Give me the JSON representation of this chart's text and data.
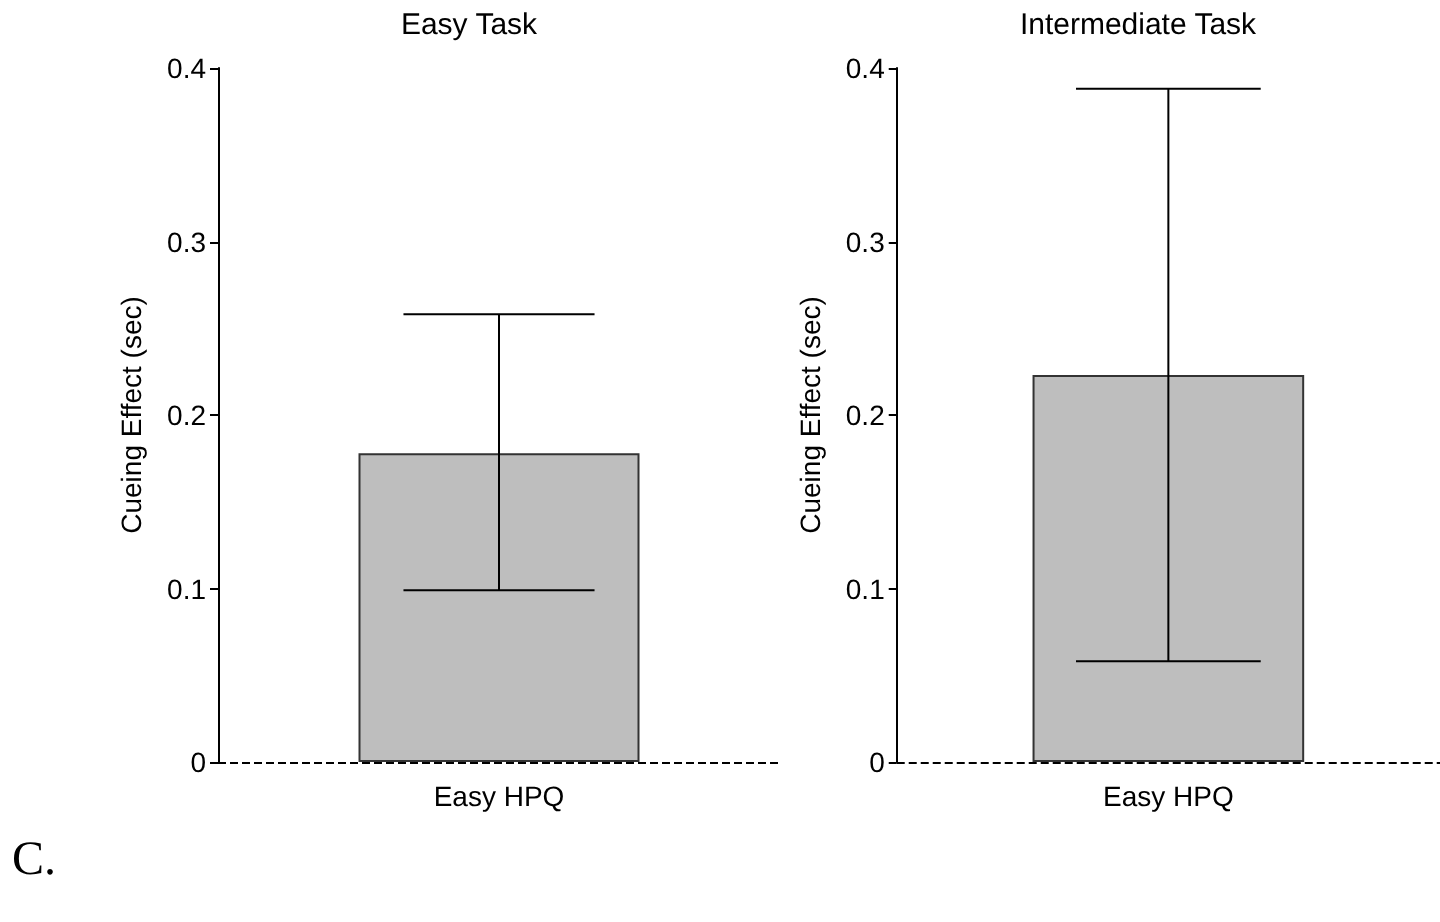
{
  "chart_data": [
    {
      "type": "bar",
      "title": "Easy Task",
      "ylabel": "Cueing Effect (sec)",
      "categories": [
        "Easy HPQ"
      ],
      "values": [
        0.178
      ],
      "errors": [
        [
          0.099,
          0.258
        ]
      ],
      "color": "#bebebe",
      "ylim": [
        0,
        0.4
      ],
      "yticks": [
        0,
        0.1,
        0.2,
        0.3,
        0.4
      ],
      "ref_lines": [
        {
          "axis": "y",
          "value": 0,
          "line_style": "dashed"
        }
      ],
      "annotations": [
        "C."
      ]
    },
    {
      "type": "bar",
      "title": "Intermediate Task",
      "ylabel": "Cueing Effect (sec)",
      "categories": [
        "Easy HPQ"
      ],
      "values": [
        0.223
      ],
      "errors": [
        [
          0.058,
          0.388
        ]
      ],
      "color": "#bebebe",
      "ylim": [
        0,
        0.4
      ],
      "yticks": [
        0,
        0.1,
        0.2,
        0.3,
        0.4
      ],
      "ref_lines": [
        {
          "axis": "y",
          "value": 0,
          "line_style": "dashed"
        }
      ]
    }
  ]
}
